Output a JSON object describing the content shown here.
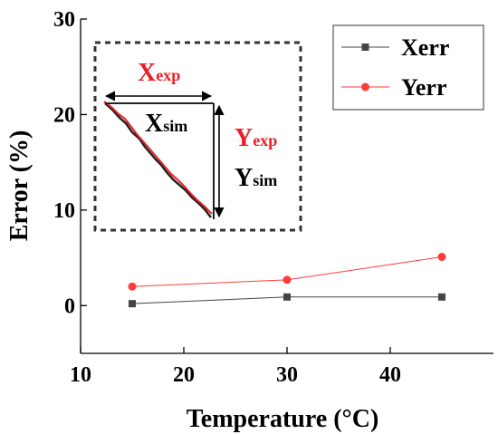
{
  "chart_data": {
    "type": "line",
    "xlabel": "Temperature (°C)",
    "ylabel": "Error (%)",
    "xlim": [
      10,
      50
    ],
    "ylim": [
      -5,
      30
    ],
    "xticks": [
      10,
      20,
      30,
      40
    ],
    "yticks": [
      0,
      10,
      20,
      30
    ],
    "grid": false,
    "legend_position": "top-right",
    "series": [
      {
        "name": "Xerr",
        "color": "#444444",
        "marker": "square",
        "x": [
          15,
          30,
          45
        ],
        "y": [
          0.2,
          0.9,
          0.9
        ]
      },
      {
        "name": "Yerr",
        "color": "#ff3b3b",
        "marker": "circle",
        "x": [
          15,
          30,
          45
        ],
        "y": [
          2.0,
          2.7,
          5.1
        ]
      }
    ]
  },
  "inset": {
    "x_exp": {
      "main": "X",
      "sub": "exp",
      "color": "#ee1c25"
    },
    "x_sim": {
      "main": "X",
      "sub": "sim",
      "color": "#000000"
    },
    "y_exp": {
      "main": "Y",
      "sub": "exp",
      "color": "#ee1c25"
    },
    "y_sim": {
      "main": "Y",
      "sub": "sim",
      "color": "#000000"
    }
  }
}
